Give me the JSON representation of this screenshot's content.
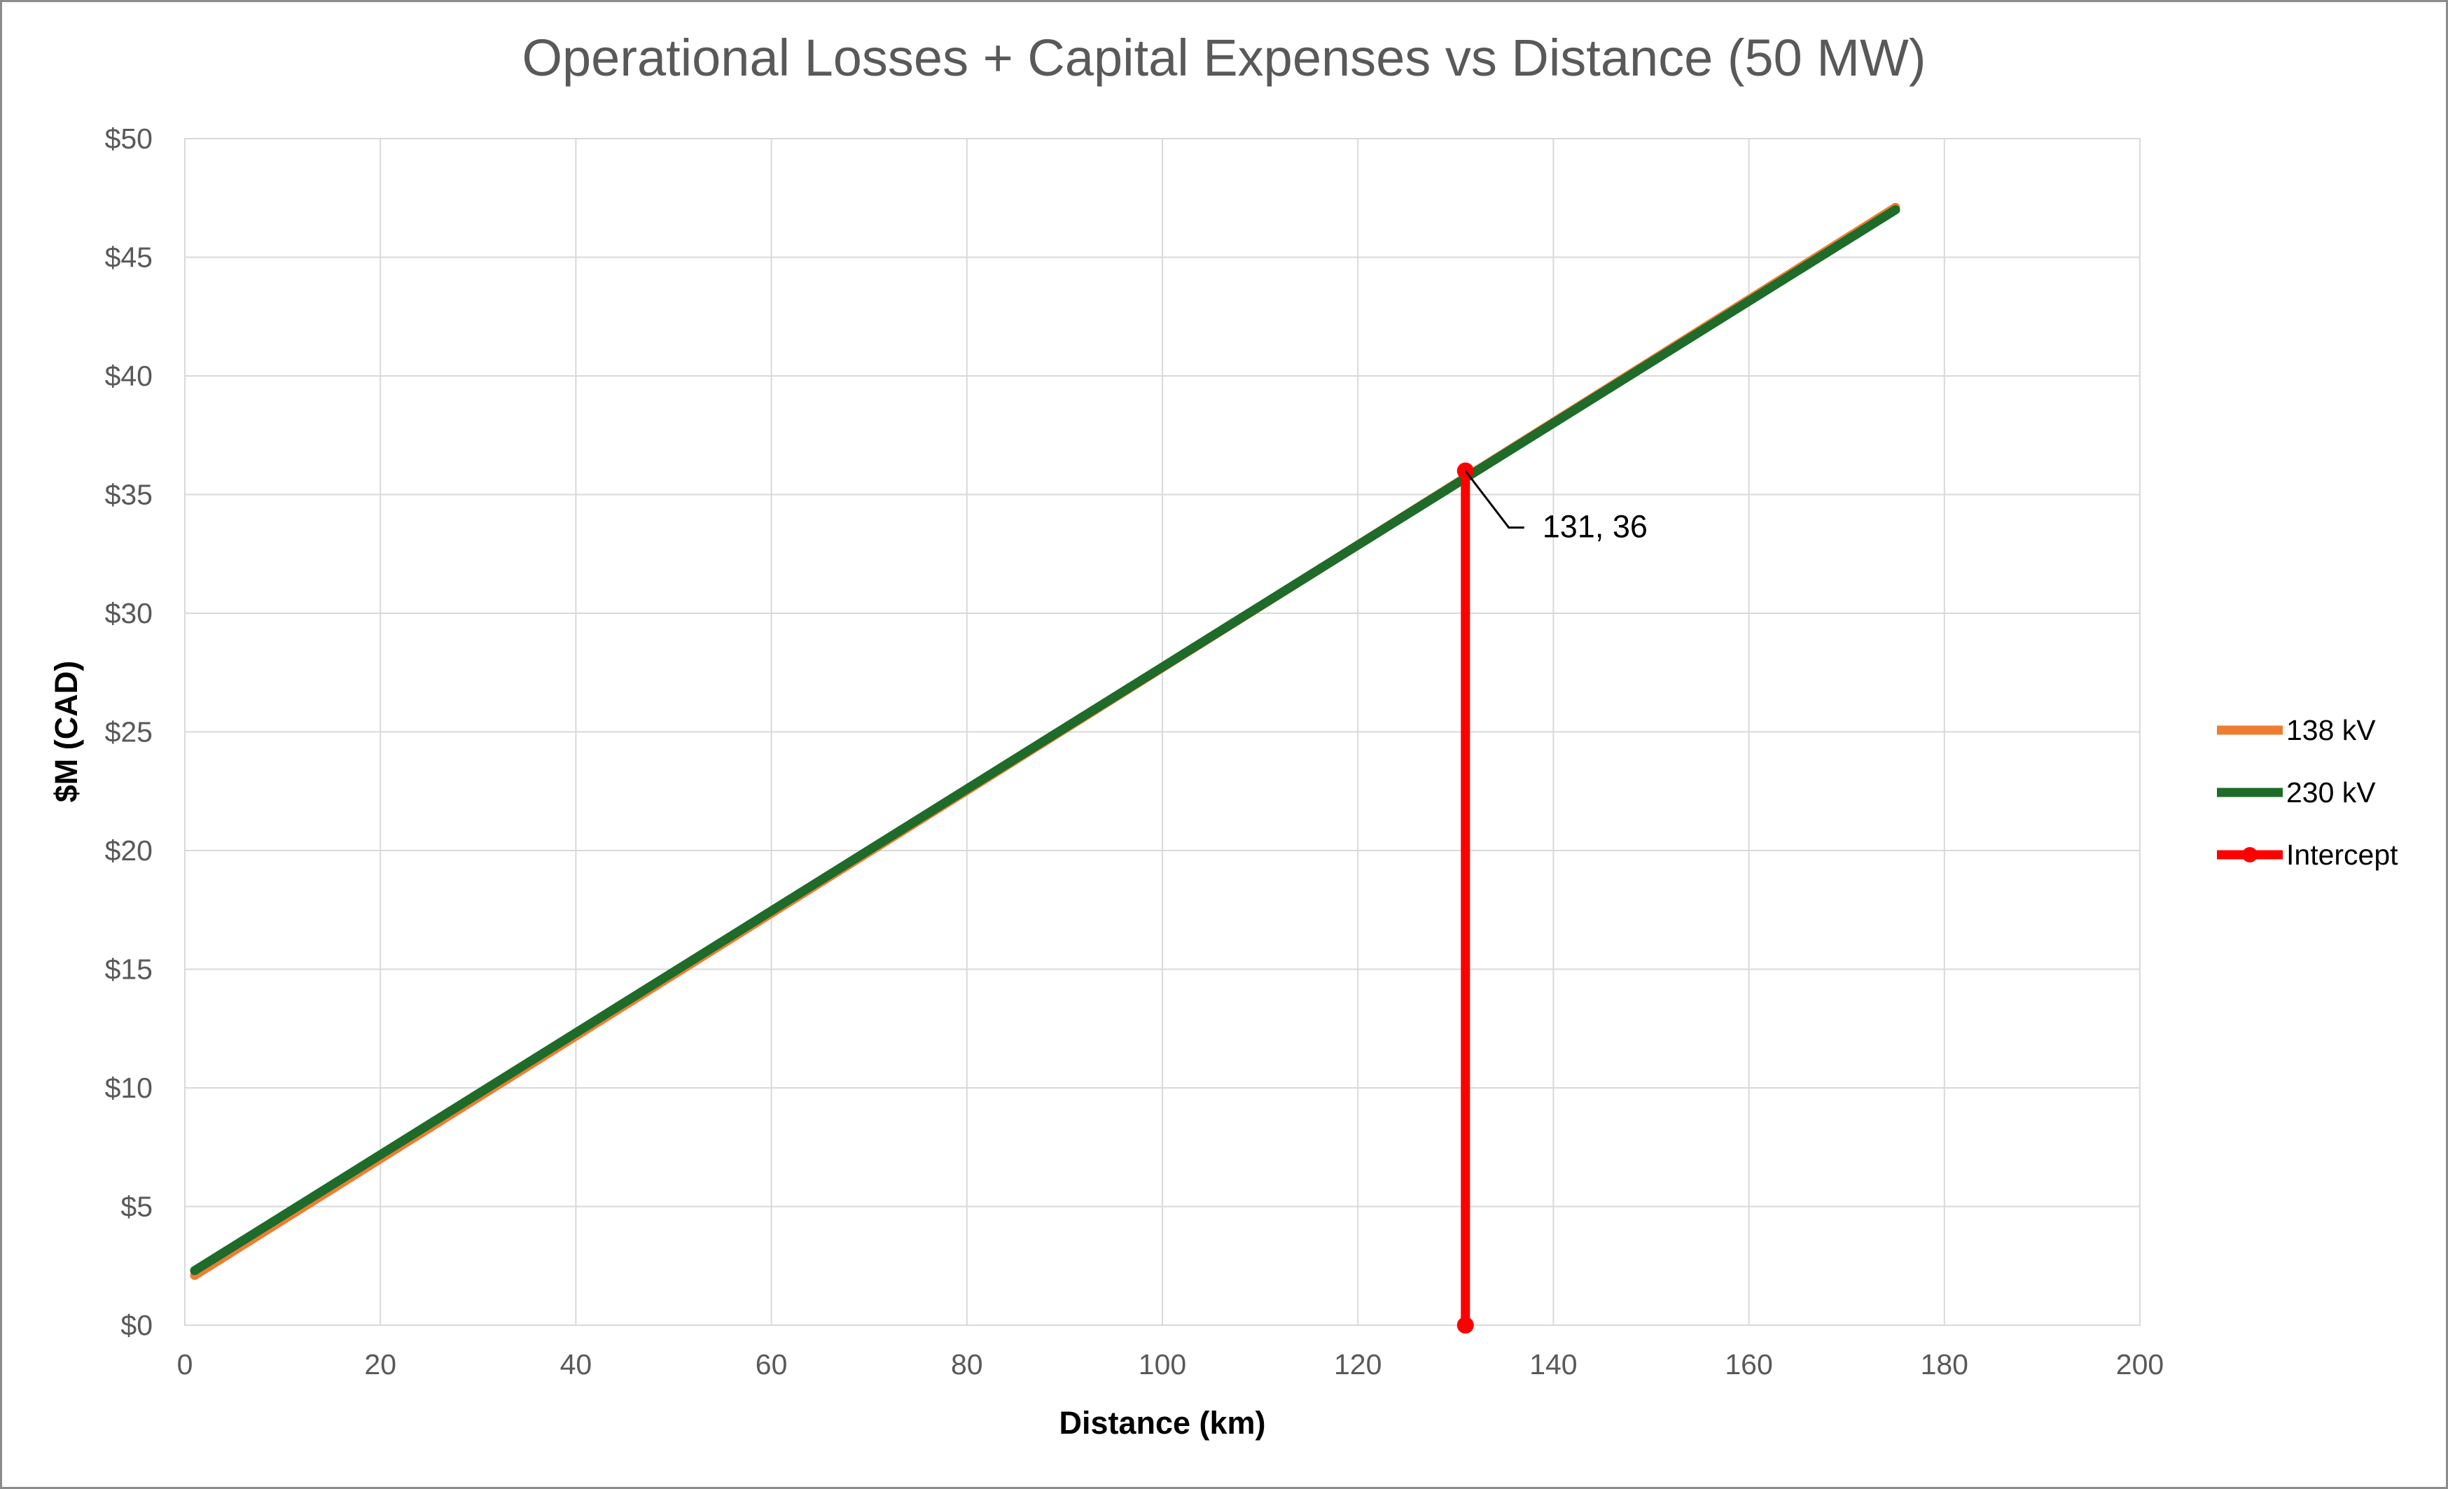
{
  "chart_data": {
    "type": "line",
    "title": "Operational Losses + Capital Expenses vs Distance (50 MW)",
    "xlabel": "Distance (km)",
    "ylabel": "$M (CAD)",
    "xlim": [
      0,
      200
    ],
    "ylim": [
      0,
      50
    ],
    "x_ticks": [
      0,
      20,
      40,
      60,
      80,
      100,
      120,
      140,
      160,
      180,
      200
    ],
    "x_tick_labels": [
      "0",
      "20",
      "40",
      "60",
      "80",
      "100",
      "120",
      "140",
      "160",
      "180",
      "200"
    ],
    "y_ticks": [
      0,
      5,
      10,
      15,
      20,
      25,
      30,
      35,
      40,
      45,
      50
    ],
    "y_tick_labels": [
      "$0",
      "$5",
      "$10",
      "$15",
      "$20",
      "$25",
      "$30",
      "$35",
      "$40",
      "$45",
      "$50"
    ],
    "grid": true,
    "legend_position": "right",
    "series": [
      {
        "name": "138 kV",
        "color": "#ED7D31",
        "x": [
          1,
          175
        ],
        "y": [
          2.1,
          47.1
        ]
      },
      {
        "name": "230 kV",
        "color": "#1E6B2A",
        "x": [
          1,
          175
        ],
        "y": [
          2.3,
          47.0
        ]
      },
      {
        "name": "Intercept",
        "color": "#FF0000",
        "x": [
          131,
          131
        ],
        "y": [
          0,
          36
        ],
        "markers": true
      }
    ],
    "annotations": [
      {
        "text": "131, 36",
        "x": 131,
        "y": 36
      }
    ]
  }
}
